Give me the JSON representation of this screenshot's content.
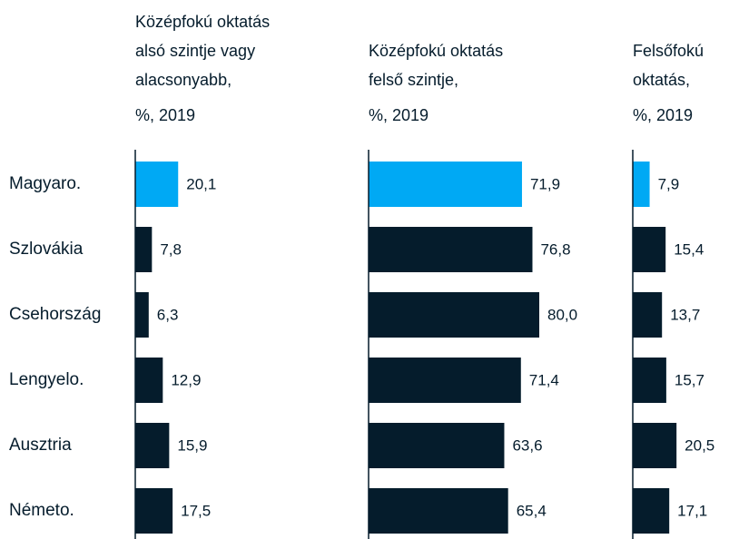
{
  "chart_data": {
    "type": "bar",
    "categories": [
      "Magyaro.",
      "Szlovákia",
      "Csehország",
      "Lengyelo.",
      "Ausztria",
      "Németo."
    ],
    "panels": [
      {
        "title": [
          "Középfokú oktatás",
          "alsó szintje vagy",
          "alacsonyabb,"
        ],
        "subtitle": "%, 2019",
        "values": [
          20.1,
          7.8,
          6.3,
          12.9,
          15.9,
          17.5
        ],
        "value_labels": [
          "20,1",
          "7,8",
          "6,3",
          "12,9",
          "15,9",
          "17,5"
        ],
        "colors": [
          "#00a9f4",
          "#051c2c",
          "#051c2c",
          "#051c2c",
          "#051c2c",
          "#051c2c"
        ],
        "xlim": [
          0,
          100
        ]
      },
      {
        "title": [
          "Középfokú oktatás",
          "felső szintje,"
        ],
        "subtitle": "%, 2019",
        "values": [
          71.9,
          76.8,
          80.0,
          71.4,
          63.6,
          65.4
        ],
        "value_labels": [
          "71,9",
          "76,8",
          "80,0",
          "71,4",
          "63,6",
          "65,4"
        ],
        "colors": [
          "#00a9f4",
          "#051c2c",
          "#051c2c",
          "#051c2c",
          "#051c2c",
          "#051c2c"
        ],
        "xlim": [
          0,
          100
        ]
      },
      {
        "title": [
          "Felsőfokú",
          "oktatás,"
        ],
        "subtitle": "%, 2019",
        "values": [
          7.9,
          15.4,
          13.7,
          15.7,
          20.5,
          17.1
        ],
        "value_labels": [
          "7,9",
          "15,4",
          "13,7",
          "15,7",
          "20,5",
          "17,1"
        ],
        "colors": [
          "#00a9f4",
          "#051c2c",
          "#051c2c",
          "#051c2c",
          "#051c2c",
          "#051c2c"
        ],
        "xlim": [
          0,
          100
        ]
      }
    ]
  }
}
